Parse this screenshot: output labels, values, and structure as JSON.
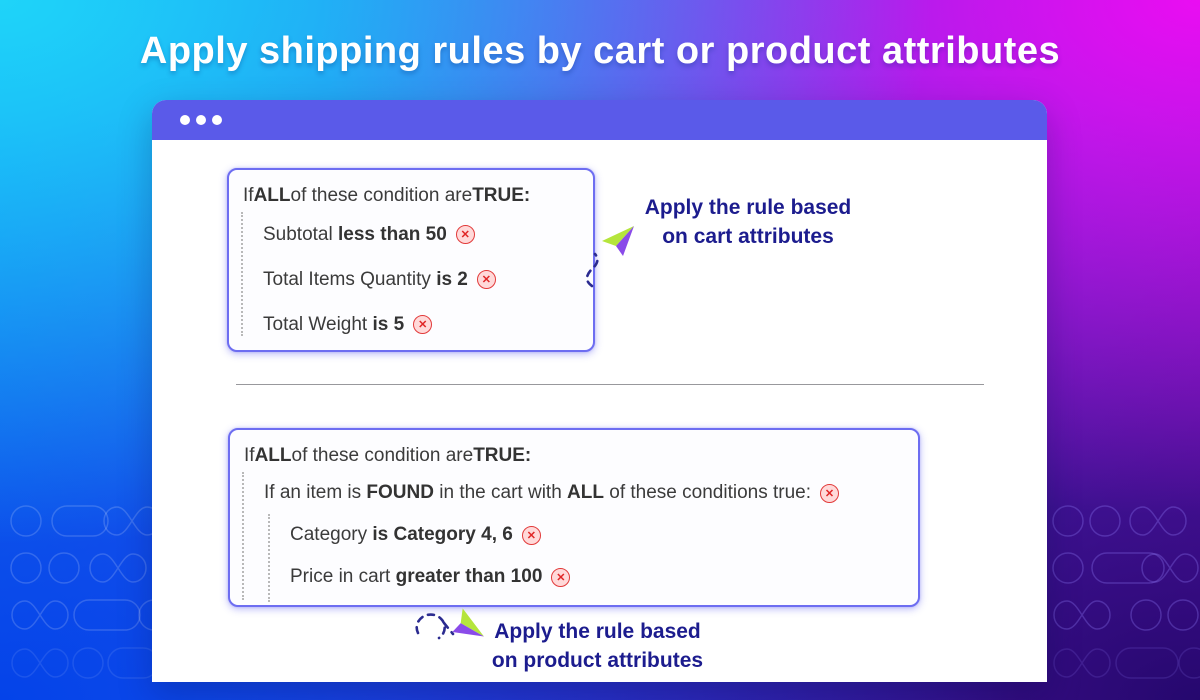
{
  "title": "Apply shipping rules by cart or product attributes",
  "window": {
    "traffic_dots": 3
  },
  "cards": [
    {
      "name": "cart-conditions-card",
      "header": [
        {
          "text": "If ",
          "bold": false
        },
        {
          "text": "ALL",
          "bold": true
        },
        {
          "text": " of these condition are ",
          "bold": false
        },
        {
          "text": "TRUE:",
          "bold": true
        }
      ],
      "items": [
        {
          "indent": 1,
          "segments": [
            {
              "text": "Subtotal ",
              "bold": false
            },
            {
              "text": "less than 50",
              "bold": true
            }
          ],
          "icon": "circle-x-icon"
        },
        {
          "indent": 1,
          "segments": [
            {
              "text": "Total Items Quantity ",
              "bold": false
            },
            {
              "text": "is 2",
              "bold": true
            }
          ],
          "icon": "circle-x-icon"
        },
        {
          "indent": 1,
          "segments": [
            {
              "text": "Total Weight ",
              "bold": false
            },
            {
              "text": "is 5",
              "bold": true
            }
          ],
          "icon": "circle-x-icon"
        }
      ]
    },
    {
      "name": "product-conditions-card",
      "header": [
        {
          "text": "If ",
          "bold": false
        },
        {
          "text": "ALL",
          "bold": true
        },
        {
          "text": " of these condition are ",
          "bold": false
        },
        {
          "text": "TRUE:",
          "bold": true
        }
      ],
      "items": [
        {
          "indent": 1,
          "segments": [
            {
              "text": "If an item is ",
              "bold": false
            },
            {
              "text": "FOUND",
              "bold": true
            },
            {
              "text": " in the cart with ",
              "bold": false
            },
            {
              "text": "ALL",
              "bold": true
            },
            {
              "text": " of these conditions true:",
              "bold": false
            }
          ],
          "icon": "circle-x-icon"
        },
        {
          "indent": 2,
          "segments": [
            {
              "text": "Category ",
              "bold": false
            },
            {
              "text": "is Category 4, 6",
              "bold": true
            }
          ],
          "icon": "circle-x-icon"
        },
        {
          "indent": 2,
          "segments": [
            {
              "text": "Price in cart ",
              "bold": false
            },
            {
              "text": "greater than 100",
              "bold": true
            }
          ],
          "icon": "circle-x-icon"
        }
      ]
    }
  ],
  "annotations": [
    {
      "lines": [
        "Apply the rule based",
        "on cart attributes"
      ],
      "icon": "paper-plane-icon"
    },
    {
      "lines": [
        "Apply the rule based",
        "on product attributes"
      ],
      "icon": "paper-plane-icon"
    }
  ],
  "colors": {
    "header_bar": "#5a5ae9",
    "card_border": "#6d6df1",
    "annotation_text": "#1c1c8e",
    "error_red": "#e23b3b",
    "error_bg": "#ffd9d9",
    "plane_purple": "#8a4be9",
    "plane_green": "#b5e53c",
    "bg_top_left": "#1fd4f9",
    "bg_top_right": "#ea0df2",
    "bg_bottom_left": "#0443e9",
    "bg_bottom_right": "#25086e"
  }
}
